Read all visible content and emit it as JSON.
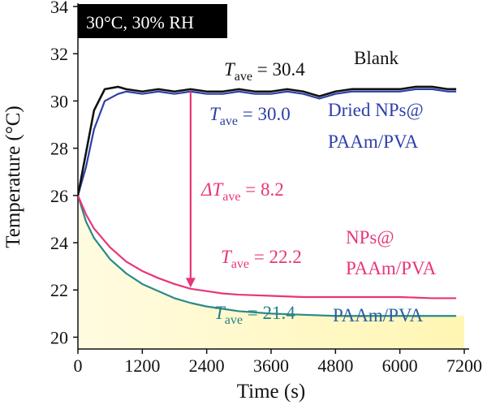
{
  "chart_data": {
    "type": "line",
    "xlabel": "Time (s)",
    "ylabel": "Temperature (°C)",
    "xlim": [
      0,
      7200
    ],
    "ylim": [
      19.5,
      34
    ],
    "x_ticks": [
      "0",
      "1200",
      "2400",
      "3600",
      "4800",
      "6000",
      "7200"
    ],
    "y_ticks": [
      "20",
      "22",
      "24",
      "26",
      "28",
      "30",
      "32",
      "34"
    ],
    "condition_label": "30°C, 30% RH",
    "colors": {
      "blank": "#111111",
      "dried": "#2b3fa8",
      "nps": "#e8357a",
      "paam": "#2a8a8a",
      "fill": "#fff6b3"
    },
    "series": [
      {
        "name": "Blank",
        "key": "blank",
        "x": [
          0,
          150,
          300,
          500,
          750,
          900,
          1200,
          1500,
          1800,
          2100,
          2400,
          2700,
          3000,
          3300,
          3600,
          3900,
          4200,
          4500,
          4800,
          5100,
          5400,
          5700,
          6000,
          6300,
          6600,
          6900,
          7050
        ],
        "y": [
          26.0,
          27.8,
          29.6,
          30.5,
          30.6,
          30.5,
          30.4,
          30.5,
          30.4,
          30.5,
          30.4,
          30.4,
          30.5,
          30.4,
          30.4,
          30.5,
          30.4,
          30.2,
          30.4,
          30.5,
          30.5,
          30.5,
          30.5,
          30.6,
          30.6,
          30.5,
          30.5
        ]
      },
      {
        "name": "Dried NPs@ PAAm/PVA",
        "key": "dried",
        "x": [
          0,
          150,
          300,
          500,
          750,
          900,
          1200,
          1500,
          1800,
          2100,
          2400,
          2700,
          3000,
          3300,
          3600,
          3900,
          4200,
          4500,
          4800,
          5100,
          5400,
          5700,
          6000,
          6300,
          6600,
          6900,
          7050
        ],
        "y": [
          26.0,
          27.2,
          28.8,
          30.0,
          30.3,
          30.4,
          30.3,
          30.4,
          30.3,
          30.4,
          30.3,
          30.3,
          30.4,
          30.3,
          30.3,
          30.4,
          30.3,
          30.1,
          30.3,
          30.4,
          30.4,
          30.4,
          30.4,
          30.5,
          30.5,
          30.4,
          30.4
        ]
      },
      {
        "name": "NPs@ PAAm/PVA",
        "key": "nps",
        "x": [
          0,
          150,
          300,
          600,
          900,
          1200,
          1500,
          1800,
          2100,
          2400,
          2700,
          3000,
          3600,
          4200,
          4800,
          5400,
          6000,
          6600,
          7050
        ],
        "y": [
          26.0,
          25.2,
          24.6,
          23.8,
          23.2,
          22.8,
          22.5,
          22.25,
          22.05,
          21.95,
          21.85,
          21.8,
          21.75,
          21.7,
          21.7,
          21.7,
          21.7,
          21.65,
          21.65
        ]
      },
      {
        "name": "PAAm/PVA",
        "key": "paam",
        "x": [
          0,
          150,
          300,
          600,
          900,
          1200,
          1500,
          1800,
          2100,
          2400,
          2700,
          3000,
          3600,
          4200,
          4800,
          5400,
          6000,
          6600,
          7050
        ],
        "y": [
          26.0,
          24.9,
          24.2,
          23.3,
          22.7,
          22.25,
          21.95,
          21.65,
          21.45,
          21.3,
          21.2,
          21.1,
          21.0,
          20.95,
          20.9,
          20.9,
          20.9,
          20.9,
          20.9
        ]
      }
    ],
    "arrow": {
      "x": 2100,
      "y_from": 30.4,
      "y_to": 22.1,
      "color": "#e8357a"
    },
    "annotations": {
      "blank_t": "T",
      "blank_sub": "ave",
      "blank_val": " = 30.4",
      "blank_name": "Blank",
      "dried_t": "T",
      "dried_sub": "ave",
      "dried_val": " = 30.0",
      "dried_name_1": "Dried NPs@",
      "dried_name_2": "PAAm/PVA",
      "delta_t": "ΔT",
      "delta_sub": "ave",
      "delta_val": " = 8.2",
      "nps_t": "T",
      "nps_sub": "ave",
      "nps_val": " = 22.2",
      "nps_name_1": "NPs@",
      "nps_name_2": "PAAm/PVA",
      "paam_t": "T",
      "paam_sub": "ave",
      "paam_val": " = 21.4",
      "paam_name": "PAAm/PVA"
    }
  }
}
